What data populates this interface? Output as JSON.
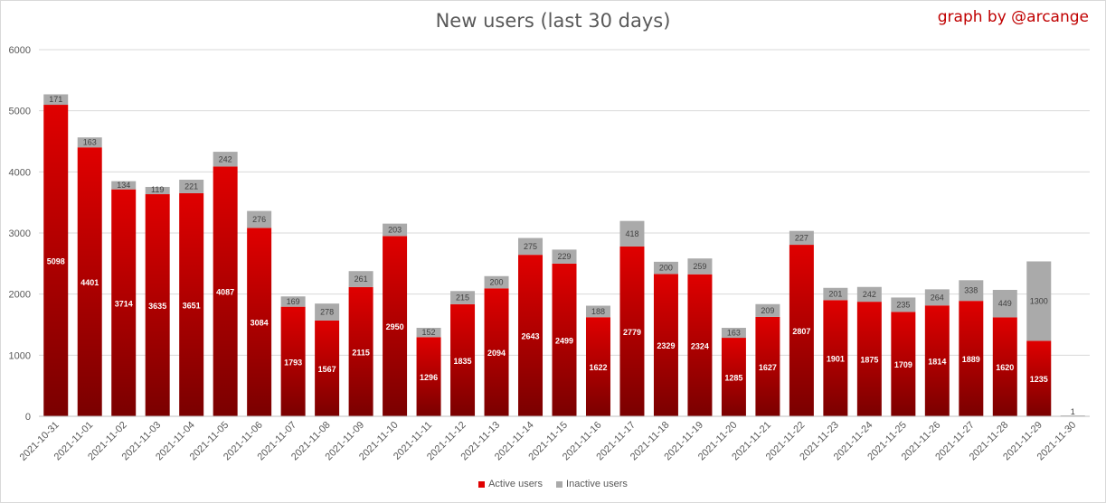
{
  "header": {
    "title": "New users (last 30 days)",
    "credit": "graph by @arcange"
  },
  "legend": {
    "active_label": "Active users",
    "inactive_label": "Inactive users"
  },
  "colors": {
    "active_top": "#e00000",
    "active_bottom": "#7a0000",
    "inactive": "#aaaaaa",
    "grid": "#d9d9d9",
    "text": "#595959"
  },
  "chart_data": {
    "type": "bar",
    "stacked": true,
    "title": "New users (last 30 days)",
    "xlabel": "",
    "ylabel": "",
    "ylim": [
      0,
      6000
    ],
    "yticks": [
      0,
      1000,
      2000,
      3000,
      4000,
      5000,
      6000
    ],
    "grid": true,
    "legend_position": "bottom",
    "categories": [
      "2021-10-31",
      "2021-11-01",
      "2021-11-02",
      "2021-11-03",
      "2021-11-04",
      "2021-11-05",
      "2021-11-06",
      "2021-11-07",
      "2021-11-08",
      "2021-11-09",
      "2021-11-10",
      "2021-11-11",
      "2021-11-12",
      "2021-11-13",
      "2021-11-14",
      "2021-11-15",
      "2021-11-16",
      "2021-11-17",
      "2021-11-18",
      "2021-11-19",
      "2021-11-20",
      "2021-11-21",
      "2021-11-22",
      "2021-11-23",
      "2021-11-24",
      "2021-11-25",
      "2021-11-26",
      "2021-11-27",
      "2021-11-28",
      "2021-11-29",
      "2021-11-30"
    ],
    "series": [
      {
        "name": "Active users",
        "values": [
          5098,
          4401,
          3714,
          3635,
          3651,
          4087,
          3084,
          1793,
          1567,
          2115,
          2950,
          1296,
          1835,
          2094,
          2643,
          2499,
          1622,
          2779,
          2329,
          2324,
          1285,
          1627,
          2807,
          1901,
          1875,
          1709,
          1814,
          1889,
          1620,
          1235,
          0
        ]
      },
      {
        "name": "Inactive users",
        "values": [
          171,
          163,
          134,
          119,
          221,
          242,
          276,
          169,
          278,
          261,
          203,
          152,
          215,
          200,
          275,
          229,
          188,
          418,
          200,
          259,
          163,
          209,
          227,
          201,
          242,
          235,
          264,
          338,
          449,
          1300,
          1
        ]
      }
    ]
  }
}
